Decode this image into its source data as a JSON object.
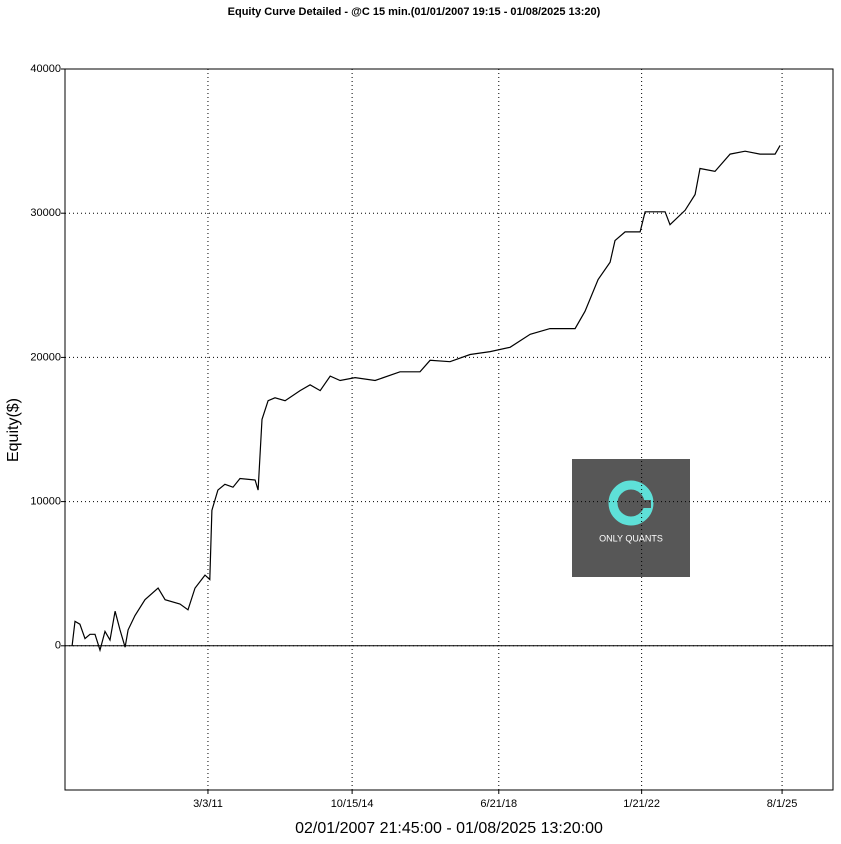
{
  "chart_data": {
    "type": "line",
    "title": "Equity Curve Detailed - @C 15 min.(01/01/2007 19:15 - 01/08/2025 13:20)",
    "xlabel": "02/01/2007 21:45:00 - 01/08/2025 13:20:00",
    "ylabel": "Equity($)",
    "annotation": "ONLY QUANTS",
    "grid": true,
    "xlim": [
      "2007-07-31",
      "2026-11-11"
    ],
    "xticks": [
      {
        "value": "2011-03-03",
        "label": "3/3/11"
      },
      {
        "value": "2014-10-15",
        "label": "10/15/14"
      },
      {
        "value": "2018-06-21",
        "label": "6/21/18"
      },
      {
        "value": "2022-01-21",
        "label": "1/21/22"
      },
      {
        "value": "2025-08-01",
        "label": "8/1/25"
      }
    ],
    "ylim": [
      -10000,
      40000
    ],
    "yticks": [
      0,
      10000,
      20000,
      30000,
      40000
    ],
    "x": [
      "2007-10-04",
      "2007-10-31",
      "2007-12-15",
      "2008-01-30",
      "2008-03-16",
      "2008-05-01",
      "2008-06-16",
      "2008-08-01",
      "2008-09-16",
      "2008-11-01",
      "2008-12-16",
      "2009-02-01",
      "2009-03-01",
      "2009-05-03",
      "2009-08-03",
      "2009-12-01",
      "2010-02-03",
      "2010-06-20",
      "2010-09-01",
      "2010-11-04",
      "2011-02-04",
      "2011-03-20",
      "2011-04-08",
      "2011-06-02",
      "2011-08-05",
      "2011-10-19",
      "2011-12-22",
      "2012-05-08",
      "2012-06-05",
      "2012-07-11",
      "2012-09-05",
      "2012-11-07",
      "2013-02-07",
      "2013-06-25",
      "2013-09-25",
      "2013-12-26",
      "2014-03-28",
      "2014-06-27",
      "2014-11-11",
      "2015-05-14",
      "2015-12-28",
      "2016-06-29",
      "2016-09-29",
      "2017-03-31",
      "2017-10-01",
      "2018-04-03",
      "2018-10-03",
      "2019-04-05",
      "2019-10-04",
      "2020-05-21",
      "2020-08-20",
      "2020-12-18",
      "2021-04-07",
      "2021-05-22",
      "2021-08-22",
      "2022-01-07",
      "2022-02-22",
      "2022-08-24",
      "2022-10-08",
      "2023-02-24",
      "2023-05-26",
      "2023-07-10",
      "2023-11-25",
      "2024-04-11",
      "2024-08-27",
      "2025-01-11",
      "2025-05-29",
      "2025-07-14"
    ],
    "series": [
      {
        "name": "Equity",
        "color": "#000000",
        "values": [
          0,
          1700,
          1500,
          500,
          800,
          800,
          -300,
          1000,
          400,
          2400,
          1100,
          -100,
          1100,
          2100,
          3200,
          4000,
          3200,
          2900,
          2500,
          4000,
          4900,
          4600,
          9400,
          10800,
          11200,
          11000,
          11600,
          11500,
          10800,
          15700,
          17000,
          17200,
          17000,
          17700,
          18100,
          17700,
          18700,
          18400,
          18600,
          18400,
          19000,
          19000,
          19800,
          19700,
          20200,
          20400,
          20700,
          21600,
          22000,
          22000,
          23200,
          25400,
          26600,
          28100,
          28700,
          28700,
          30100,
          30100,
          29200,
          30200,
          31300,
          33100,
          32900,
          34100,
          34300,
          34100,
          34100,
          34700
        ]
      }
    ]
  }
}
